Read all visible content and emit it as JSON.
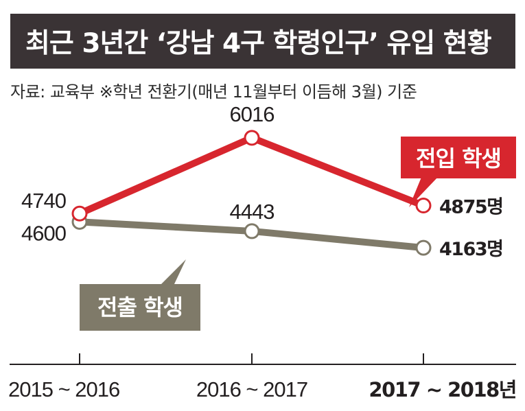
{
  "header": {
    "title": "최근 3년간 ‘강남 4구 학령인구’ 유입 현황",
    "source": "자료: 교육부 ※학년 전환기(매년 11월부터 이듬해 3월) 기준"
  },
  "colors": {
    "transfer_in": "#d7262e",
    "transfer_out": "#7f7a69",
    "title_bg": "#3a3335",
    "axis": "#231f20"
  },
  "chart_data": {
    "type": "line",
    "title": "최근 3년간 ‘강남 4구 학령인구’ 유입 현황",
    "categories": [
      "2015 ~ 2016",
      "2016 ~ 2017",
      "2017 ~ 2018년"
    ],
    "series": [
      {
        "name": "전입 학생",
        "values": [
          4740,
          6016,
          4875
        ],
        "labels": [
          "4740",
          "6016",
          "4875명"
        ]
      },
      {
        "name": "전출 학생",
        "values": [
          4600,
          4443,
          4163
        ],
        "labels": [
          "4600",
          "4443",
          "4163명"
        ]
      }
    ],
    "unit": "명",
    "ylim": [
      2200,
      6800
    ],
    "grid": false,
    "legend": "callout labels"
  }
}
